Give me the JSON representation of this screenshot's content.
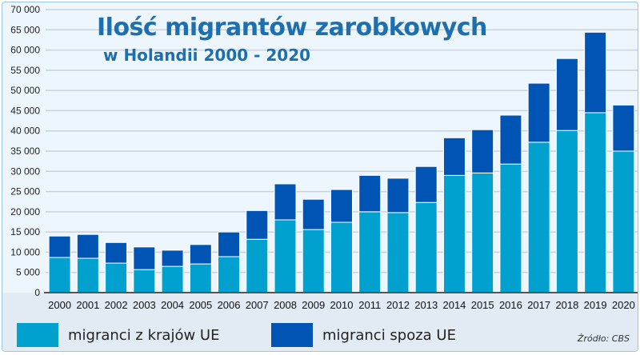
{
  "chart_data": {
    "type": "bar",
    "stacked": true,
    "title": "Ilość migrantów zarobkowych",
    "subtitle": "w Holandii 2000 - 2020",
    "categories": [
      "2000",
      "2001",
      "2002",
      "2003",
      "2004",
      "2005",
      "2006",
      "2007",
      "2008",
      "2009",
      "2010",
      "2011",
      "2012",
      "2013",
      "2014",
      "2015",
      "2016",
      "2017",
      "2018",
      "2019",
      "2020"
    ],
    "series": [
      {
        "name": "migranci z krajów UE",
        "color": "#00a0cf",
        "values": [
          8700,
          8500,
          7300,
          5700,
          6500,
          7100,
          8900,
          13200,
          18000,
          15600,
          17400,
          20000,
          19800,
          22300,
          29000,
          29600,
          31800,
          37200,
          40100,
          44500,
          35000
        ]
      },
      {
        "name": "migranci spoza UE",
        "color": "#0054b4",
        "values": [
          5300,
          5900,
          5100,
          5600,
          4000,
          4800,
          6100,
          7100,
          8900,
          7500,
          8100,
          9000,
          8500,
          8900,
          9300,
          10700,
          12100,
          14600,
          17800,
          19900,
          11400
        ]
      }
    ],
    "ylim": [
      0,
      70000
    ],
    "yticks": [
      "0",
      "5 000",
      "10 000",
      "15 000",
      "20 000",
      "25 000",
      "30 000",
      "35 000",
      "40 000",
      "45 000",
      "50 000",
      "55 000",
      "60 000",
      "65 000",
      "70 000"
    ],
    "grid": true,
    "legend": "bottom",
    "source": "Źródło: CBS"
  }
}
